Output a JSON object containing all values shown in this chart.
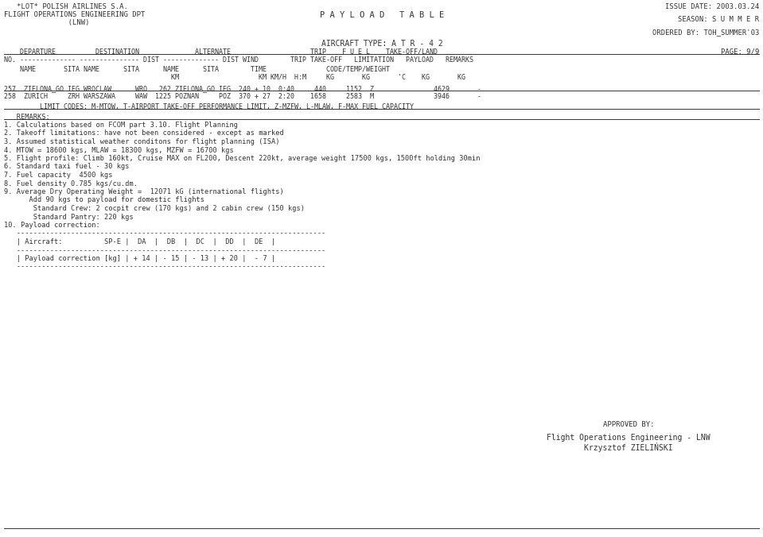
{
  "bg_color": "#ffffff",
  "text_color": "#333333",
  "font_family": "monospace",
  "header_left_line1": "   *LOT* POLISH AIRLINES S.A.",
  "header_left_line2": "FLIGHT OPERATIONS ENGINEERING DPT",
  "header_left_line3": "               (LNW)",
  "header_center": "P A Y L O A D   T A B L E",
  "header_right_line1": "ISSUE DATE: 2003.03.24",
  "header_right_line2": "SEASON: S U M M E R",
  "header_right_line3": "ORDERED BY: TOH_SUMMER'03",
  "aircraft_type": "AIRCRAFT TYPE: A T R - 4 2",
  "page": "PAGE: 9/9",
  "col_h1": "    DEPARTURE          DESTINATION              ALTERNATE                    TRIP    F U E L    TAKE-OFF/LAND",
  "col_h2": "NO. -------------- --------------- DIST -------------- DIST WIND        TRIP TAKE-OFF   LIMITATION   PAYLOAD   REMARKS",
  "col_h3": "    NAME       SITA NAME      SITA      NAME      SITA        TIME               CODE/TEMP/WEIGHT",
  "col_h4": "                                          KM                    KM KM/H  H:M     KG       KG       'C    KG       KG",
  "data_row1": "257  ZIELONA_GO IEG WROCLAW      WRO   262 ZIELONA_GO IEG  240 + 10  0:40     440     1152  Z               4629       -",
  "data_row2": "258  ZURICH     ZRH WARSZAWA     WAW  1225 POZNAN     POZ  370 + 27  2:20    1658     2583  M               3946       -",
  "limit_codes": "         LIMIT CODES: M-MTOW, T-AIRPORT TAKE-OFF PERFORMANCE LIMIT, Z-MZFW, L-MLAW, F-MAX FUEL CAPACITY",
  "remarks_header": "   REMARKS:",
  "remark1": "1. Calculations based on FCOM part 3.10. Flight Planning",
  "remark2": "2. Takeoff limitations: have not been considered - except as marked",
  "remark3": "3. Assumed statistical weather conditons for flight planning (ISA)",
  "remark4": "4. MTOW = 18600 kgs, MLAW = 18300 kgs, MZFW = 16700 kgs",
  "remark5": "5. Flight profile: Climb 160kt, Cruise MAX on FL200, Descent 220kt, average weight 17500 kgs, 1500ft holding 30min",
  "remark6": "6. Standard taxi fuel - 30 kgs",
  "remark7": "7. Fuel capacity  4500 kgs",
  "remark8": "8. Fuel density 0.785 kgs/cu.dm.",
  "remark9a": "9. Average Dry Operating Weight =  12071 kG (international flights)",
  "remark9b": "      Add 90 kgs to payload for domestic flights",
  "remark9c": "       Standard Crew: 2 cocpit crew (170 kgs) and 2 cabin crew (150 kgs)",
  "remark9d": "       Standard Pantry: 220 kgs",
  "remark10": "10. Payload correction:",
  "table_sep": "   --------------------------------------------------------------------------",
  "table_row1": "   | Aircraft:          SP-E |  DA  |  DB  |  DC  |  DD  |  DE  |",
  "table_row2": "   | Payload correction [kg] | + 14 | - 15 | - 13 | + 20 |  - 7 |",
  "approved_label": "APPROVED BY:",
  "approved_sign1": "Flight Operations Engineering - LNW",
  "approved_sign2": "Krzysztof ZIELIŃSKI",
  "bottom_sep": "------------------------------------------------------------------------------------------------------------------------------------"
}
